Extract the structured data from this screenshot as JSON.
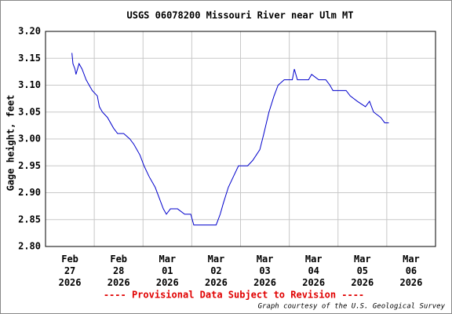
{
  "chart_data": {
    "type": "line",
    "title": "USGS 06078200 Missouri River near Ulm MT",
    "y_label": "Gage height, feet",
    "footer": "---- Provisional Data Subject to Revision ----",
    "credit": "Graph courtesy of the U.S. Geological Survey",
    "grid": true,
    "xlim": [
      "2026-02-27",
      "2026-03-07"
    ],
    "xticks": [
      {
        "value": "2026-02-27",
        "label": "Feb 27 2026"
      },
      {
        "value": "2026-02-28",
        "label": "Feb 28 2026"
      },
      {
        "value": "2026-03-01",
        "label": "Mar 01 2026"
      },
      {
        "value": "2026-03-02",
        "label": "Mar 02 2026"
      },
      {
        "value": "2026-03-03",
        "label": "Mar 03 2026"
      },
      {
        "value": "2026-03-04",
        "label": "Mar 04 2026"
      },
      {
        "value": "2026-03-05",
        "label": "Mar 05 2026"
      },
      {
        "value": "2026-03-06",
        "label": "Mar 06 2026"
      }
    ],
    "ylim": [
      2.8,
      3.2
    ],
    "yticks": [
      {
        "value": 2.8,
        "label": "2.80"
      },
      2.85,
      {
        "value": 2.9,
        "label": "2.90"
      },
      2.95,
      {
        "value": 3.0,
        "label": "3.00"
      },
      3.05,
      {
        "value": 3.1,
        "label": "3.10"
      },
      3.15,
      {
        "value": 3.2,
        "label": "3.20"
      }
    ],
    "x": [
      "2026-02-27T13:00",
      "2026-02-27T13:30",
      "2026-02-27T14:30",
      "2026-02-27T15:00",
      "2026-02-27T16:30",
      "2026-02-27T18:00",
      "2026-02-27T20:00",
      "2026-02-27T21:30",
      "2026-02-27T23:00",
      "2026-02-28T01:30",
      "2026-02-28T02:30",
      "2026-02-28T04:00",
      "2026-02-28T06:30",
      "2026-02-28T09:30",
      "2026-02-28T11:30",
      "2026-02-28T14:30",
      "2026-02-28T17:30",
      "2026-02-28T19:30",
      "2026-02-28T22:30",
      "2026-03-01T00:30",
      "2026-03-01T03:00",
      "2026-03-01T06:00",
      "2026-03-01T08:00",
      "2026-03-01T10:00",
      "2026-03-01T11:30",
      "2026-03-01T13:30",
      "2026-03-01T17:00",
      "2026-03-01T20:30",
      "2026-03-01T23:30",
      "2026-03-02T01:00",
      "2026-03-02T12:00",
      "2026-03-02T14:00",
      "2026-03-02T15:30",
      "2026-03-02T18:00",
      "2026-03-02T20:30",
      "2026-03-02T23:00",
      "2026-03-03T03:30",
      "2026-03-03T06:00",
      "2026-03-03T09:30",
      "2026-03-03T11:30",
      "2026-03-03T14:00",
      "2026-03-03T16:30",
      "2026-03-03T18:30",
      "2026-03-03T21:30",
      "2026-03-04T01:30",
      "2026-03-04T02:30",
      "2026-03-04T04:00",
      "2026-03-04T09:30",
      "2026-03-04T11:00",
      "2026-03-04T14:30",
      "2026-03-04T18:00",
      "2026-03-04T20:00",
      "2026-03-04T21:30",
      "2026-03-05T04:00",
      "2026-03-05T06:00",
      "2026-03-05T09:30",
      "2026-03-05T13:30",
      "2026-03-05T15:30",
      "2026-03-05T17:30",
      "2026-03-05T21:00",
      "2026-03-05T23:00",
      "2026-03-06T01:00"
    ],
    "series": [
      {
        "name": "Gage height",
        "color": "#0000cc",
        "values": [
          3.16,
          3.14,
          3.13,
          3.12,
          3.14,
          3.13,
          3.11,
          3.1,
          3.09,
          3.08,
          3.06,
          3.05,
          3.04,
          3.02,
          3.01,
          3.01,
          3.0,
          2.99,
          2.97,
          2.95,
          2.93,
          2.91,
          2.89,
          2.87,
          2.86,
          2.87,
          2.87,
          2.86,
          2.86,
          2.84,
          2.84,
          2.86,
          2.88,
          2.91,
          2.93,
          2.95,
          2.95,
          2.96,
          2.98,
          3.01,
          3.05,
          3.08,
          3.1,
          3.11,
          3.11,
          3.13,
          3.11,
          3.11,
          3.12,
          3.11,
          3.11,
          3.1,
          3.09,
          3.09,
          3.08,
          3.07,
          3.06,
          3.07,
          3.05,
          3.04,
          3.03,
          3.03
        ]
      }
    ]
  }
}
